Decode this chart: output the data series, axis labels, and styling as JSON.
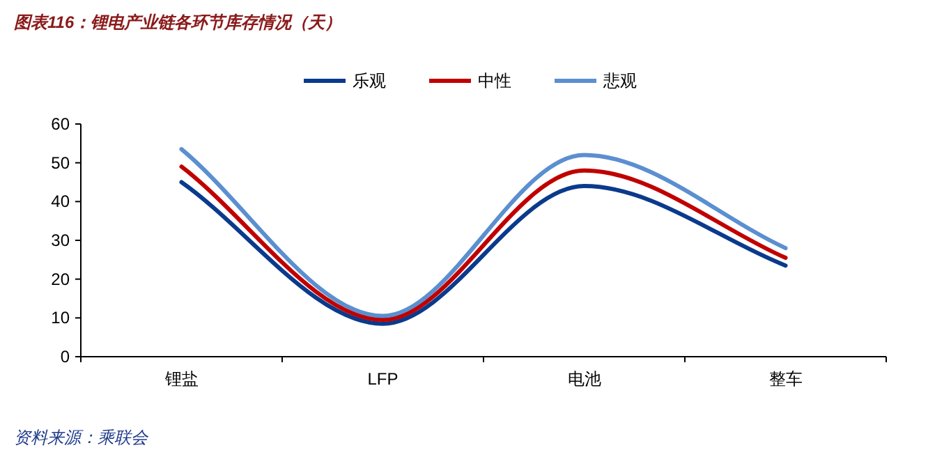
{
  "chart_data": {
    "type": "line",
    "title": "图表116：锂电产业链各环节库存情况（天）",
    "categories": [
      "锂盐",
      "LFP",
      "电池",
      "整车"
    ],
    "series": [
      {
        "name": "乐观",
        "color": "#0a3a8c",
        "values": [
          45,
          8.5,
          44,
          23.5
        ]
      },
      {
        "name": "中性",
        "color": "#c00000",
        "values": [
          49,
          9.5,
          48,
          25.5
        ]
      },
      {
        "name": "悲观",
        "color": "#5b8fd0",
        "values": [
          53.5,
          10.5,
          52,
          28
        ]
      }
    ],
    "ylim": [
      0,
      60
    ],
    "yticks": [
      0,
      10,
      20,
      30,
      40,
      50,
      60
    ],
    "grid": false,
    "legend": "top",
    "marker": "none",
    "line_style": "solid",
    "annotations": [
      "资料来源：乘联会"
    ]
  }
}
